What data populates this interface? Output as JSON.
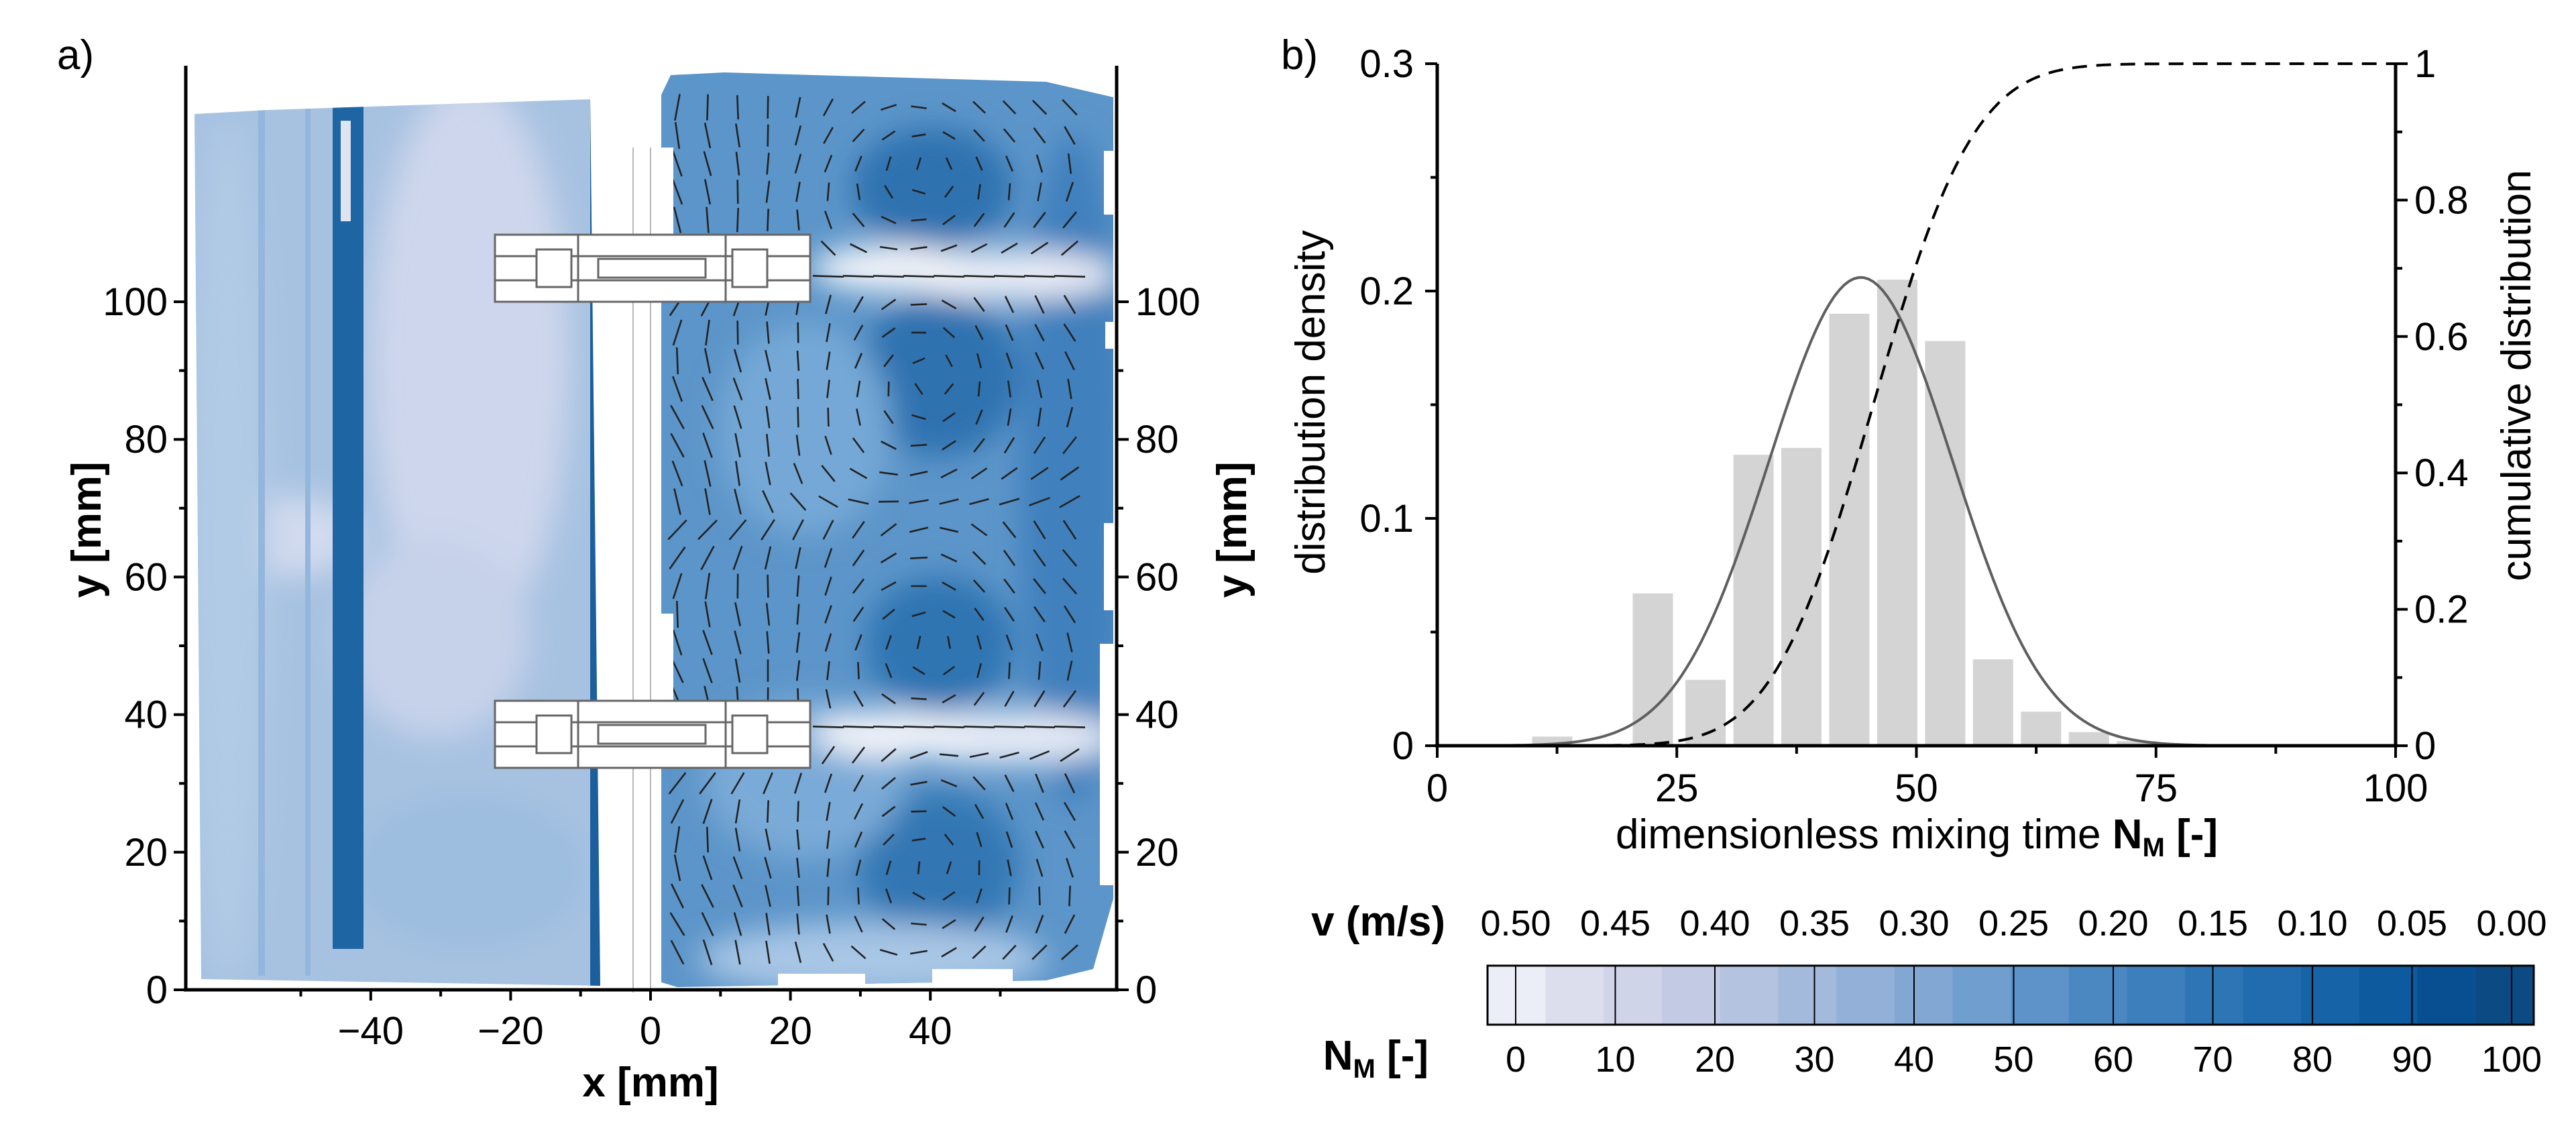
{
  "panels": {
    "a_label": "a)",
    "b_label": "b)"
  },
  "flow_field": {
    "type": "contour-vector",
    "x_label": "x [mm]",
    "y_label_left": "y [mm]",
    "y_label_right": "y [mm]",
    "x_range": [
      -55,
      55
    ],
    "y_range": [
      0,
      110
    ],
    "x_ticks": [
      -40,
      -20,
      0,
      20,
      40
    ],
    "y_ticks": [
      0,
      20,
      40,
      60,
      80,
      100
    ],
    "colors": {
      "light": "#dde0ef",
      "mid": "#7eaed6",
      "dark": "#1f6aa8",
      "darkest": "#0c4f88"
    }
  },
  "chart_data": {
    "type": "bar",
    "title": "",
    "xlabel_main": "dimensionless mixing time ",
    "xlabel_symbol": "N",
    "xlabel_sub": "M",
    "xlabel_unit": " [-]",
    "ylabel": "distribution density",
    "y2label": "cumulative distribution",
    "xlim": [
      0,
      100
    ],
    "ylim": [
      0,
      0.3
    ],
    "y2lim": [
      0,
      1
    ],
    "x_ticks": [
      0,
      25,
      50,
      75,
      100
    ],
    "y_ticks": [
      0,
      0.1,
      0.2,
      0.3
    ],
    "y2_ticks": [
      0,
      0.2,
      0.4,
      0.6,
      0.8,
      1
    ],
    "bar_width": 4.2,
    "bars": {
      "x": [
        12,
        22.5,
        28,
        33,
        38,
        43,
        48,
        53,
        58,
        63,
        68,
        73
      ],
      "values": [
        0.004,
        0.067,
        0.029,
        0.128,
        0.131,
        0.19,
        0.205,
        0.178,
        0.038,
        0.015,
        0.006,
        0.002
      ]
    },
    "density_fit": {
      "mean": 44.2,
      "sd": 9.6,
      "peak": 0.206
    },
    "cumulative": {
      "mean": 45.5,
      "sd": 8.3
    },
    "colors": {
      "bar": "#d4d4d4",
      "fit": "#5f5f5f",
      "cdf": "#000000"
    }
  },
  "colorbar": {
    "v_label": "v (m/s)",
    "n_symbol": "N",
    "n_sub": "M",
    "n_unit": " [-]",
    "v_ticks": [
      "0.50",
      "0.45",
      "0.40",
      "0.35",
      "0.30",
      "0.25",
      "0.20",
      "0.15",
      "0.10",
      "0.05",
      "0.00"
    ],
    "n_ticks": [
      "0",
      "10",
      "20",
      "30",
      "40",
      "50",
      "60",
      "70",
      "80",
      "90",
      "100"
    ],
    "colors": [
      "#eceef7",
      "#dcdeee",
      "#d0d4e9",
      "#c3cbe4",
      "#b4c4e0",
      "#a4badc",
      "#93b1d8",
      "#82a7d3",
      "#709ecf",
      "#5d93c9",
      "#4b88c2",
      "#3c7fbc",
      "#2e75b5",
      "#216cae",
      "#1663a7",
      "#0d5a9f",
      "#074f90",
      "#0c4a83"
    ]
  }
}
